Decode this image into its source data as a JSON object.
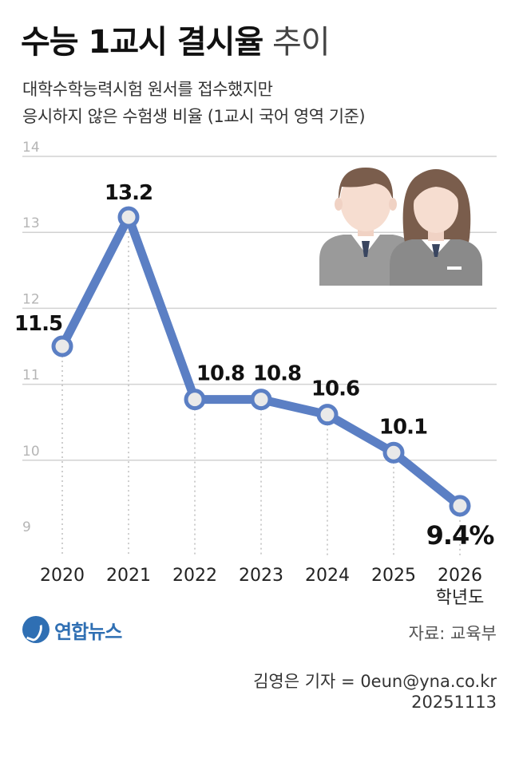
{
  "header": {
    "title_bold": "수능 1교시 결시율",
    "title_light": "추이",
    "subtitle_line1": "대학수학능력시험 원서를 접수했지만",
    "subtitle_line2": "응시하지 않은 수험생 비율 (1교시 국어 영역 기준)"
  },
  "chart_data": {
    "type": "line",
    "categories": [
      "2020",
      "2021",
      "2022",
      "2023",
      "2024",
      "2025",
      "2026"
    ],
    "x_suffix_label": "학년도",
    "series": [
      {
        "values": [
          11.5,
          13.2,
          10.8,
          10.8,
          10.6,
          10.1,
          9.4
        ]
      }
    ],
    "data_labels": [
      "11.5",
      "13.2",
      "10.8",
      "10.8",
      "10.6",
      "10.1",
      "9.4%"
    ],
    "y_ticks": [
      "14",
      "13",
      "12",
      "11",
      "10",
      "9"
    ],
    "ylim": [
      9,
      14
    ],
    "grid": true,
    "line_color": "#5b7fc4",
    "marker_fill": "#e9e9e9",
    "grid_color": "#d2d2d2"
  },
  "footer": {
    "logo_text": "연합뉴스",
    "source": "자료: 교육부",
    "credit": "김영은 기자 = 0eun@yna.co.kr",
    "date": "20251113"
  }
}
